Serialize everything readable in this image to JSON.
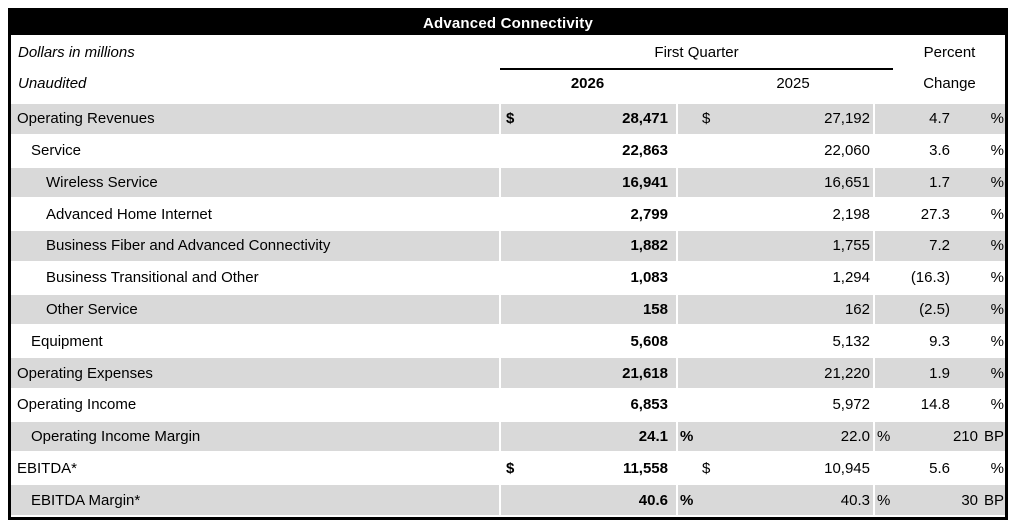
{
  "title": "Advanced Connectivity",
  "header": {
    "note_line1": "Dollars in millions",
    "note_line2": "Unaudited",
    "quarter_label": "First Quarter",
    "col_2026": "2026",
    "col_2025": "2025",
    "percent_label": "Percent",
    "change_label": "Change"
  },
  "colors": {
    "title_bar": "#000000",
    "row_shade": "#d9d9d9",
    "text": "#000000"
  },
  "rows": [
    {
      "label": "Operating Revenues",
      "indent": 0,
      "shaded": true,
      "cur_2026": "$",
      "val_2026": "28,471",
      "unit_2026": "",
      "cur_2025": "$",
      "val_2025": "27,192",
      "unit_2025": "",
      "change": "4.7",
      "change_unit": "%"
    },
    {
      "label": "Service",
      "indent": 1,
      "shaded": false,
      "cur_2026": "",
      "val_2026": "22,863",
      "unit_2026": "",
      "cur_2025": "",
      "val_2025": "22,060",
      "unit_2025": "",
      "change": "3.6",
      "change_unit": "%"
    },
    {
      "label": "Wireless Service",
      "indent": 2,
      "shaded": true,
      "cur_2026": "",
      "val_2026": "16,941",
      "unit_2026": "",
      "cur_2025": "",
      "val_2025": "16,651",
      "unit_2025": "",
      "change": "1.7",
      "change_unit": "%"
    },
    {
      "label": "Advanced Home Internet",
      "indent": 2,
      "shaded": false,
      "cur_2026": "",
      "val_2026": "2,799",
      "unit_2026": "",
      "cur_2025": "",
      "val_2025": "2,198",
      "unit_2025": "",
      "change": "27.3",
      "change_unit": "%"
    },
    {
      "label": "Business Fiber and Advanced Connectivity",
      "indent": 2,
      "shaded": true,
      "cur_2026": "",
      "val_2026": "1,882",
      "unit_2026": "",
      "cur_2025": "",
      "val_2025": "1,755",
      "unit_2025": "",
      "change": "7.2",
      "change_unit": "%"
    },
    {
      "label": "Business Transitional and Other",
      "indent": 2,
      "shaded": false,
      "cur_2026": "",
      "val_2026": "1,083",
      "unit_2026": "",
      "cur_2025": "",
      "val_2025": "1,294",
      "unit_2025": "",
      "change": "(16.3)",
      "change_unit": "%"
    },
    {
      "label": "Other Service",
      "indent": 2,
      "shaded": true,
      "cur_2026": "",
      "val_2026": "158",
      "unit_2026": "",
      "cur_2025": "",
      "val_2025": "162",
      "unit_2025": "",
      "change": "(2.5)",
      "change_unit": "%"
    },
    {
      "label": "Equipment",
      "indent": 1,
      "shaded": false,
      "cur_2026": "",
      "val_2026": "5,608",
      "unit_2026": "",
      "cur_2025": "",
      "val_2025": "5,132",
      "unit_2025": "",
      "change": "9.3",
      "change_unit": "%"
    },
    {
      "label": "Operating Expenses",
      "indent": 0,
      "shaded": true,
      "cur_2026": "",
      "val_2026": "21,618",
      "unit_2026": "",
      "cur_2025": "",
      "val_2025": "21,220",
      "unit_2025": "",
      "change": "1.9",
      "change_unit": "%"
    },
    {
      "label": "Operating Income",
      "indent": 0,
      "shaded": false,
      "cur_2026": "",
      "val_2026": "6,853",
      "unit_2026": "",
      "cur_2025": "",
      "val_2025": "5,972",
      "unit_2025": "",
      "change": "14.8",
      "change_unit": "%"
    },
    {
      "label": "Operating Income Margin",
      "indent": 1,
      "shaded": true,
      "cur_2026": "",
      "val_2026": "24.1",
      "unit_2026": "%",
      "cur_2025": "",
      "val_2025": "22.0",
      "unit_2025": "%",
      "change": "210",
      "change_unit": "BP"
    },
    {
      "label": "EBITDA*",
      "indent": 0,
      "shaded": false,
      "cur_2026": "$",
      "val_2026": "11,558",
      "unit_2026": "",
      "cur_2025": "$",
      "val_2025": "10,945",
      "unit_2025": "",
      "change": "5.6",
      "change_unit": "%"
    },
    {
      "label": "EBITDA Margin*",
      "indent": 1,
      "shaded": true,
      "cur_2026": "",
      "val_2026": "40.6",
      "unit_2026": "%",
      "cur_2025": "",
      "val_2025": "40.3",
      "unit_2025": "%",
      "change": "30",
      "change_unit": "BP"
    }
  ]
}
